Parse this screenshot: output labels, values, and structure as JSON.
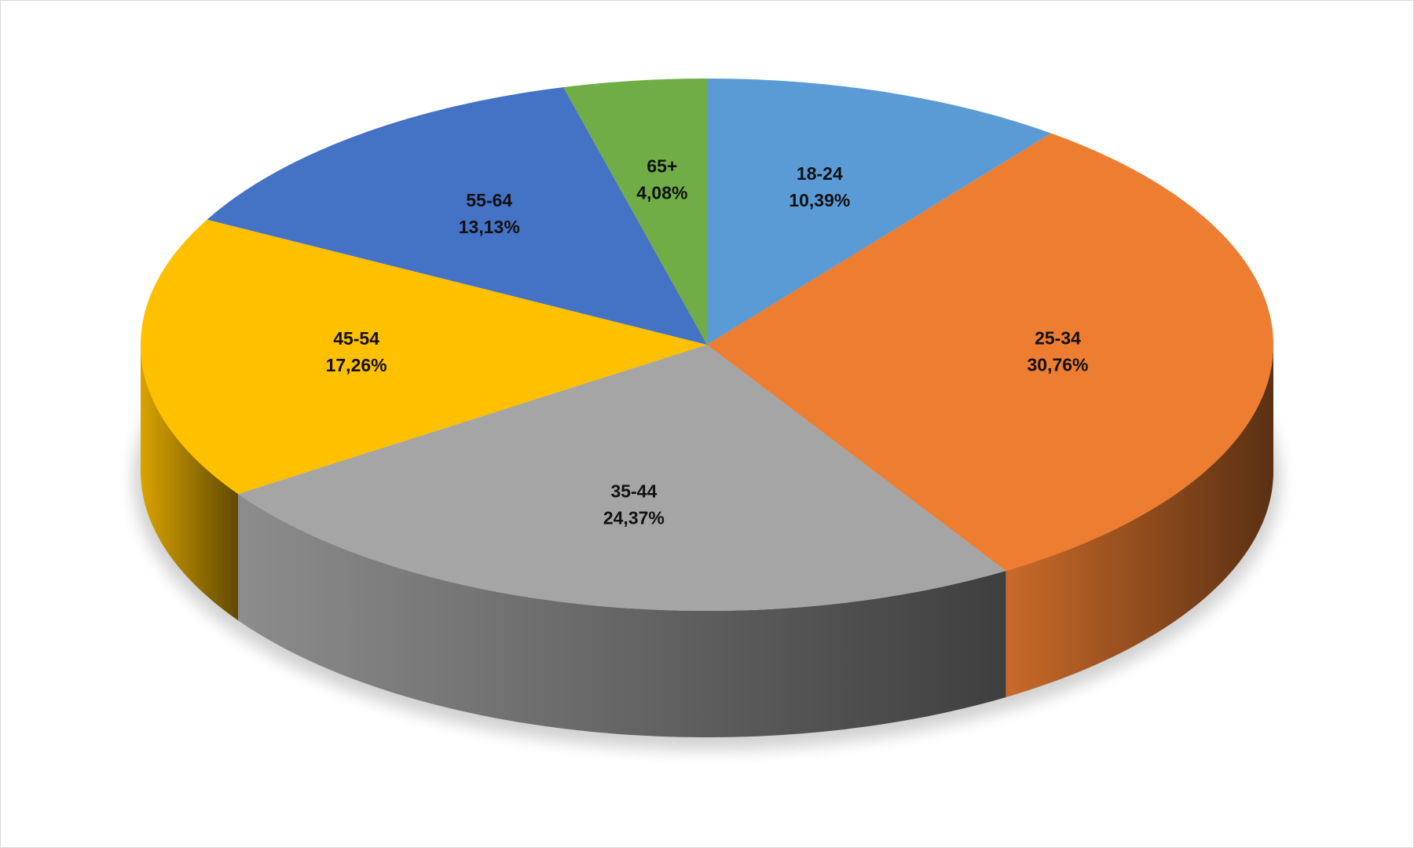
{
  "chart_data": {
    "type": "pie",
    "categories": [
      "18-24",
      "25-34",
      "35-44",
      "45-54",
      "55-64",
      "65+"
    ],
    "values": [
      10.39,
      30.76,
      24.37,
      17.26,
      13.13,
      4.08
    ],
    "value_labels": [
      "10,39%",
      "30,76%",
      "24,37%",
      "17,26%",
      "13,13%",
      "4,08%"
    ],
    "colors": [
      "#5b9bd5",
      "#ed7d31",
      "#a5a5a5",
      "#ffc000",
      "#4472c4",
      "#70ad47"
    ]
  }
}
